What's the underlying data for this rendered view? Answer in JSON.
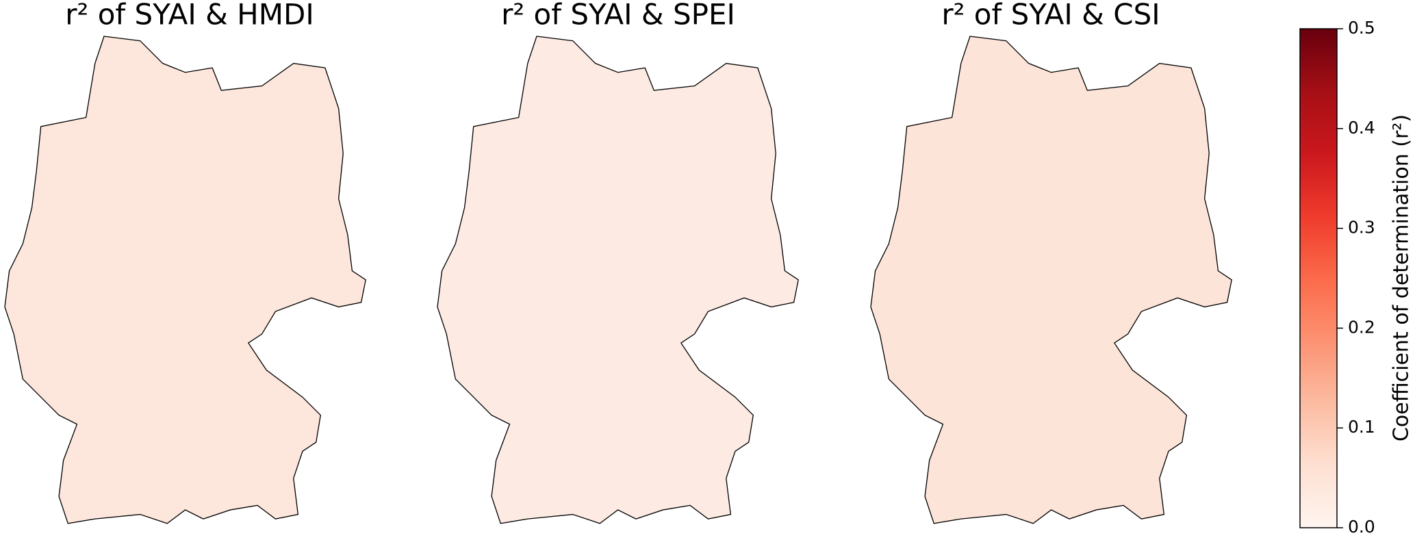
{
  "panels": [
    {
      "title": "r² of SYAI & HMDI"
    },
    {
      "title": "r² of SYAI & SPEI"
    },
    {
      "title": "r² of SYAI & CSI"
    }
  ],
  "colorbar": {
    "label": "Coefficient of determination (r²)",
    "lim": [
      0,
      0.5
    ],
    "ticks": [
      {
        "value": 0,
        "label": "0.0"
      },
      0.1,
      0.2,
      0.3,
      0.4,
      0.5
    ],
    "colors": [
      "#fff5f0",
      "#fee0d2",
      "#fcbba1",
      "#fc9272",
      "#fb6a4a",
      "#ef3b2c",
      "#cb181d",
      "#a50f15",
      "#67000d"
    ]
  }
}
